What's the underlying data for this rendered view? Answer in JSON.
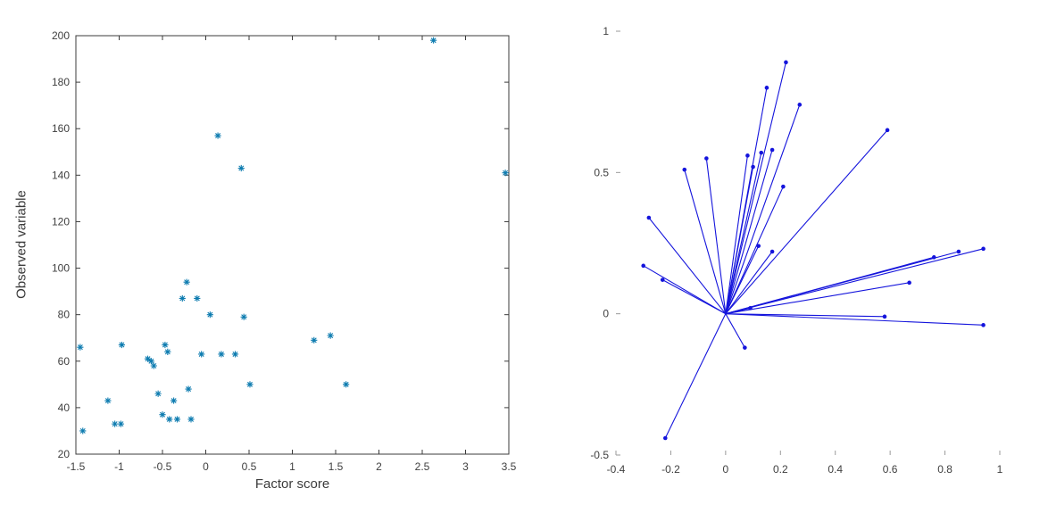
{
  "figure": {
    "background": "#ffffff"
  },
  "chart_data": [
    {
      "type": "scatter",
      "name": "factor-score-scatter",
      "title": "",
      "xlabel": "Factor score",
      "ylabel": "Observed variable",
      "xlim": [
        -1.5,
        3.5
      ],
      "ylim": [
        20,
        200
      ],
      "xticks": [
        -1.5,
        -1,
        -0.5,
        0,
        0.5,
        1,
        1.5,
        2,
        2.5,
        3,
        3.5
      ],
      "yticks": [
        20,
        40,
        60,
        80,
        100,
        120,
        140,
        160,
        180,
        200
      ],
      "grid": false,
      "legend": "none",
      "marker": "asterisk",
      "marker_color": "#0E7CB0",
      "axis_color": "#3b3b3b",
      "points": [
        [
          -1.45,
          66
        ],
        [
          -1.42,
          30
        ],
        [
          -1.13,
          43
        ],
        [
          -1.05,
          33
        ],
        [
          -0.98,
          33
        ],
        [
          -0.97,
          67
        ],
        [
          -0.67,
          61
        ],
        [
          -0.63,
          60
        ],
        [
          -0.6,
          58
        ],
        [
          -0.55,
          46
        ],
        [
          -0.5,
          37
        ],
        [
          -0.47,
          67
        ],
        [
          -0.44,
          64
        ],
        [
          -0.42,
          35
        ],
        [
          -0.37,
          43
        ],
        [
          -0.33,
          35
        ],
        [
          -0.27,
          87
        ],
        [
          -0.22,
          94
        ],
        [
          -0.2,
          48
        ],
        [
          -0.17,
          35
        ],
        [
          -0.1,
          87
        ],
        [
          -0.05,
          63
        ],
        [
          0.05,
          80
        ],
        [
          0.14,
          157
        ],
        [
          0.18,
          63
        ],
        [
          0.34,
          63
        ],
        [
          0.41,
          143
        ],
        [
          0.44,
          79
        ],
        [
          0.51,
          50
        ],
        [
          1.25,
          69
        ],
        [
          1.44,
          71
        ],
        [
          1.62,
          50
        ],
        [
          2.63,
          198
        ],
        [
          3.46,
          141
        ]
      ]
    },
    {
      "type": "scatter",
      "style": "biplot-vectors-from-origin",
      "name": "loadings-biplot",
      "title": "",
      "xlabel": "",
      "ylabel": "",
      "xlim": [
        -0.4,
        1
      ],
      "ylim": [
        -0.5,
        1
      ],
      "xticks": [
        -0.4,
        -0.2,
        0,
        0.2,
        0.4,
        0.6,
        0.8,
        1
      ],
      "yticks": [
        -0.5,
        0,
        0.5,
        1
      ],
      "grid": false,
      "legend": "none",
      "line_color": "#1414DC",
      "tick_color": "#9a9a9a",
      "origin": [
        0,
        0
      ],
      "vectors": [
        [
          0.22,
          0.89
        ],
        [
          0.15,
          0.8
        ],
        [
          0.27,
          0.74
        ],
        [
          0.59,
          0.65
        ],
        [
          0.08,
          0.56
        ],
        [
          -0.07,
          0.55
        ],
        [
          -0.15,
          0.51
        ],
        [
          0.13,
          0.57
        ],
        [
          0.17,
          0.58
        ],
        [
          0.1,
          0.52
        ],
        [
          0.21,
          0.45
        ],
        [
          -0.28,
          0.34
        ],
        [
          -0.3,
          0.17
        ],
        [
          -0.23,
          0.12
        ],
        [
          0.12,
          0.24
        ],
        [
          0.17,
          0.22
        ],
        [
          0.94,
          0.23
        ],
        [
          0.85,
          0.22
        ],
        [
          0.76,
          0.2
        ],
        [
          0.67,
          0.11
        ],
        [
          0.94,
          -0.04
        ],
        [
          0.58,
          -0.01
        ],
        [
          0.09,
          0.02
        ],
        [
          0.07,
          -0.12
        ],
        [
          -0.22,
          -0.44
        ]
      ]
    }
  ]
}
